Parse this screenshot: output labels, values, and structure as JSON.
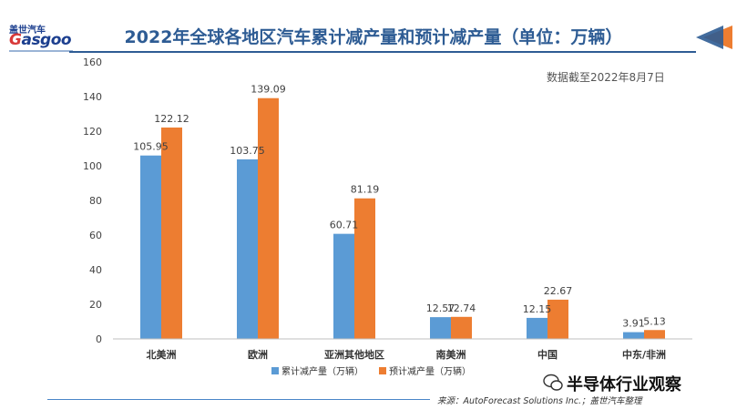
{
  "header": {
    "title": "2022年全球各地区汽车累计减产量和预计减产量（单位：万辆）",
    "logo_cn": "盖世汽车",
    "logo_en": "Gasgoo"
  },
  "note": "数据截至2022年8月7日",
  "source": "来源：AutoForecast Solutions Inc.；盖世汽车整理",
  "watermark": "半导体行业观察",
  "chart_data": {
    "type": "bar",
    "categories": [
      "北美洲",
      "欧洲",
      "亚洲其他地区",
      "南美洲",
      "中国",
      "中东/非洲"
    ],
    "series": [
      {
        "name": "累计减产量（万辆）",
        "values": [
          105.95,
          103.75,
          60.71,
          12.57,
          12.15,
          3.91
        ],
        "color": "#5b9bd5"
      },
      {
        "name": "预计减产量（万辆）",
        "values": [
          122.12,
          139.09,
          81.19,
          12.74,
          22.67,
          5.13
        ],
        "color": "#ed7d31"
      }
    ],
    "yticks": [
      0,
      20,
      40,
      60,
      80,
      100,
      120,
      140,
      160
    ],
    "ylim": [
      0,
      160
    ],
    "grid": false,
    "legend": "bottom"
  },
  "colors": {
    "title": "#2e5c94",
    "accent_orange": "#ed7d31",
    "accent_blue": "#5b9bd5"
  }
}
